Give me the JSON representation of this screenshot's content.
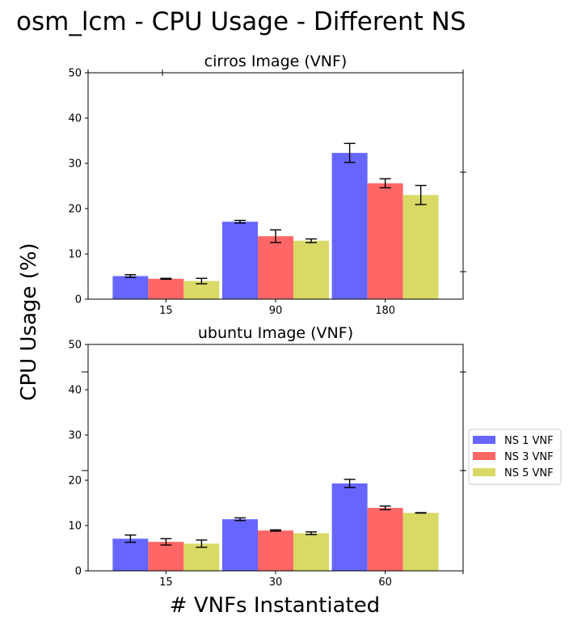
{
  "title": "osm_lcm - CPU Usage - Different NS",
  "ylabel": "CPU Usage (%)",
  "xlabel": "# VNFs Instantiated",
  "legend": {
    "placement": "center-right",
    "entries": [
      "NS 1 VNF",
      "NS 3 VNF",
      "NS 5 VNF"
    ]
  },
  "colors": {
    "NS 1 VNF": "#6666ff",
    "NS 3 VNF": "#ff6666",
    "NS 5 VNF": "#d9d966"
  },
  "chart_data": [
    {
      "type": "bar",
      "title": "cirros Image (VNF)",
      "categories": [
        "15",
        "90",
        "180"
      ],
      "ylim": [
        0,
        50
      ],
      "yticks": [
        0,
        10,
        20,
        30,
        40,
        50
      ],
      "series": [
        {
          "name": "NS 1 VNF",
          "values": [
            5.1,
            17.1,
            32.3
          ],
          "errors": [
            0.3,
            0.3,
            2.1
          ]
        },
        {
          "name": "NS 3 VNF",
          "values": [
            4.5,
            13.9,
            25.6
          ],
          "errors": [
            0.1,
            1.4,
            1.0
          ]
        },
        {
          "name": "NS 5 VNF",
          "values": [
            4.0,
            12.9,
            23.0
          ],
          "errors": [
            0.6,
            0.4,
            2.1
          ]
        }
      ]
    },
    {
      "type": "bar",
      "title": "ubuntu Image (VNF)",
      "categories": [
        "15",
        "30",
        "60"
      ],
      "ylim": [
        0,
        50
      ],
      "yticks": [
        0,
        10,
        20,
        30,
        40,
        50
      ],
      "series": [
        {
          "name": "NS 1 VNF",
          "values": [
            7.1,
            11.4,
            19.3
          ],
          "errors": [
            0.8,
            0.3,
            0.9
          ]
        },
        {
          "name": "NS 3 VNF",
          "values": [
            6.4,
            8.9,
            13.9
          ],
          "errors": [
            0.7,
            0.15,
            0.4
          ]
        },
        {
          "name": "NS 5 VNF",
          "values": [
            6.0,
            8.3,
            12.8
          ],
          "errors": [
            0.8,
            0.3,
            0.05
          ]
        }
      ]
    }
  ]
}
